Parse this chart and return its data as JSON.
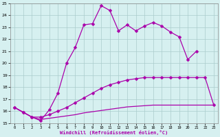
{
  "xlabel": "Windchill (Refroidissement éolien,°C)",
  "x_ticks": [
    0,
    1,
    2,
    3,
    4,
    5,
    6,
    7,
    8,
    9,
    10,
    11,
    12,
    13,
    14,
    15,
    16,
    17,
    18,
    19,
    20,
    21,
    22,
    23
  ],
  "ylim": [
    15,
    25
  ],
  "yticks": [
    15,
    16,
    17,
    18,
    19,
    20,
    21,
    22,
    23,
    24,
    25
  ],
  "line1_y": [
    16.3,
    15.9,
    15.5,
    15.2,
    16.1,
    17.5,
    20.0,
    21.3,
    23.2,
    23.3,
    24.8,
    24.4,
    22.7,
    23.2,
    22.7,
    23.1,
    23.4,
    23.1,
    22.6,
    22.2,
    20.3,
    21.0,
    null,
    null
  ],
  "line2_y": [
    16.3,
    15.9,
    15.5,
    15.5,
    15.7,
    16.0,
    16.3,
    16.7,
    17.1,
    17.5,
    17.9,
    18.2,
    18.4,
    18.6,
    18.7,
    18.8,
    18.8,
    18.8,
    18.8,
    18.8,
    18.8,
    18.8,
    18.8,
    16.5
  ],
  "line3_y": [
    16.3,
    15.9,
    15.5,
    15.3,
    15.4,
    15.5,
    15.6,
    15.7,
    15.85,
    15.95,
    16.05,
    16.15,
    16.25,
    16.35,
    16.4,
    16.45,
    16.5,
    16.5,
    16.5,
    16.5,
    16.5,
    16.5,
    16.5,
    16.5
  ],
  "color": "#aa00aa",
  "bg_color": "#d6f0f0",
  "grid_color": "#aacccc",
  "markersize": 2.5,
  "linewidth": 0.9
}
